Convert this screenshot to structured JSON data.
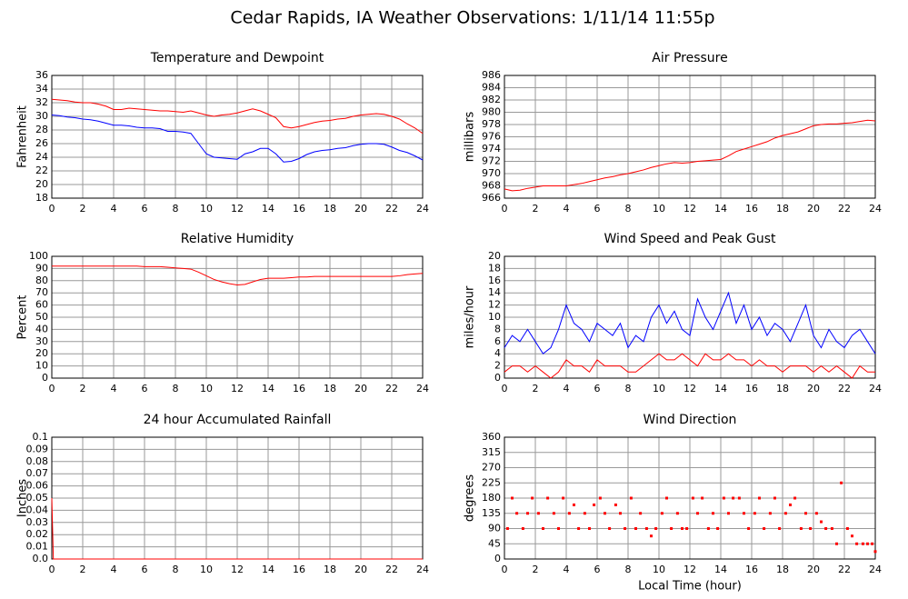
{
  "title": "Cedar Rapids, IA Weather Observations: 1/11/14 11:55p",
  "chart_data": [
    {
      "type": "line",
      "title": "Temperature and Dewpoint",
      "ylabel": "Fahrenheit",
      "x": [
        0,
        0.5,
        1,
        1.5,
        2,
        2.5,
        3,
        3.5,
        4,
        4.5,
        5,
        5.5,
        6,
        6.5,
        7,
        7.5,
        8,
        8.5,
        9,
        9.5,
        10,
        10.5,
        11,
        11.5,
        12,
        12.5,
        13,
        13.5,
        14,
        14.5,
        15,
        15.5,
        16,
        16.5,
        17,
        17.5,
        18,
        18.5,
        19,
        19.5,
        20,
        20.5,
        21,
        21.5,
        22,
        22.5,
        23,
        23.5,
        24
      ],
      "series": [
        {
          "color": "#ff0000",
          "values": [
            32.5,
            32.4,
            32.3,
            32.1,
            32.0,
            32.0,
            31.8,
            31.5,
            31.0,
            31.0,
            31.2,
            31.1,
            31.0,
            30.9,
            30.8,
            30.8,
            30.7,
            30.6,
            30.8,
            30.5,
            30.2,
            30.0,
            30.2,
            30.3,
            30.5,
            30.8,
            31.1,
            30.8,
            30.3,
            29.8,
            28.5,
            28.3,
            28.5,
            28.8,
            29.1,
            29.3,
            29.4,
            29.6,
            29.7,
            30.0,
            30.2,
            30.3,
            30.4,
            30.3,
            30.0,
            29.6,
            28.9,
            28.3,
            27.5
          ]
        },
        {
          "color": "#0000ff",
          "values": [
            30.2,
            30.1,
            29.9,
            29.8,
            29.6,
            29.5,
            29.3,
            29.0,
            28.7,
            28.7,
            28.6,
            28.4,
            28.3,
            28.3,
            28.2,
            27.8,
            27.8,
            27.7,
            27.5,
            26.0,
            24.5,
            24.0,
            23.9,
            23.8,
            23.7,
            24.5,
            24.8,
            25.3,
            25.3,
            24.5,
            23.3,
            23.4,
            23.8,
            24.4,
            24.8,
            25.0,
            25.1,
            25.3,
            25.4,
            25.7,
            25.9,
            26.0,
            26.0,
            25.9,
            25.5,
            25.0,
            24.7,
            24.2,
            23.6
          ]
        }
      ],
      "xlim": [
        0,
        24
      ],
      "xticks": [
        0,
        2,
        4,
        6,
        8,
        10,
        12,
        14,
        16,
        18,
        20,
        22,
        24
      ],
      "ylim": [
        18,
        36
      ],
      "yticks": [
        18,
        20,
        22,
        24,
        26,
        28,
        30,
        32,
        34,
        36
      ],
      "grid": true
    },
    {
      "type": "line",
      "title": "Air Pressure",
      "ylabel": "millibars",
      "x": [
        0,
        0.5,
        1,
        1.5,
        2,
        2.5,
        3,
        3.5,
        4,
        4.5,
        5,
        5.5,
        6,
        6.5,
        7,
        7.5,
        8,
        8.5,
        9,
        9.5,
        10,
        10.5,
        11,
        11.5,
        12,
        12.5,
        13,
        13.5,
        14,
        14.5,
        15,
        15.5,
        16,
        16.5,
        17,
        17.5,
        18,
        18.5,
        19,
        19.5,
        20,
        20.5,
        21,
        21.5,
        22,
        22.5,
        23,
        23.5,
        24
      ],
      "series": [
        {
          "color": "#ff0000",
          "values": [
            967.5,
            967.2,
            967.3,
            967.6,
            967.8,
            968.0,
            968.0,
            968.0,
            968.0,
            968.2,
            968.4,
            968.7,
            969.0,
            969.3,
            969.5,
            969.8,
            970.0,
            970.3,
            970.6,
            971.0,
            971.3,
            971.6,
            971.8,
            971.7,
            971.8,
            972.0,
            972.1,
            972.2,
            972.3,
            972.9,
            973.6,
            974.0,
            974.4,
            974.8,
            975.2,
            975.8,
            976.2,
            976.5,
            976.8,
            977.3,
            977.8,
            978.0,
            978.1,
            978.1,
            978.2,
            978.3,
            978.5,
            978.7,
            978.6
          ]
        }
      ],
      "xlim": [
        0,
        24
      ],
      "xticks": [
        0,
        2,
        4,
        6,
        8,
        10,
        12,
        14,
        16,
        18,
        20,
        22,
        24
      ],
      "ylim": [
        966,
        986
      ],
      "yticks": [
        966,
        968,
        970,
        972,
        974,
        976,
        978,
        980,
        982,
        984,
        986
      ],
      "grid": true
    },
    {
      "type": "line",
      "title": "Relative Humidity",
      "ylabel": "Percent",
      "x": [
        0,
        0.5,
        1,
        1.5,
        2,
        2.5,
        3,
        3.5,
        4,
        4.5,
        5,
        5.5,
        6,
        6.5,
        7,
        7.5,
        8,
        8.5,
        9,
        9.5,
        10,
        10.5,
        11,
        11.5,
        12,
        12.5,
        13,
        13.5,
        14,
        14.5,
        15,
        15.5,
        16,
        16.5,
        17,
        17.5,
        18,
        18.5,
        19,
        19.5,
        20,
        20.5,
        21,
        21.5,
        22,
        22.5,
        23,
        23.5,
        24
      ],
      "series": [
        {
          "color": "#ff0000",
          "values": [
            92,
            92,
            92,
            92,
            92,
            92,
            92,
            92,
            92,
            92,
            92,
            92,
            91.5,
            91.5,
            91.5,
            91,
            90.5,
            90,
            89.5,
            87,
            84,
            81,
            79,
            77.5,
            76.5,
            77,
            79,
            81,
            82,
            82,
            82,
            82.5,
            83,
            83,
            83.5,
            83.5,
            83.5,
            83.5,
            83.5,
            83.5,
            83.5,
            83.5,
            83.5,
            83.5,
            83.5,
            84,
            85,
            85.5,
            86
          ]
        }
      ],
      "xlim": [
        0,
        24
      ],
      "xticks": [
        0,
        2,
        4,
        6,
        8,
        10,
        12,
        14,
        16,
        18,
        20,
        22,
        24
      ],
      "ylim": [
        0,
        100
      ],
      "yticks": [
        0,
        10,
        20,
        30,
        40,
        50,
        60,
        70,
        80,
        90,
        100
      ],
      "grid": true
    },
    {
      "type": "line",
      "title": "Wind Speed and Peak Gust",
      "ylabel": "miles/hour",
      "x": [
        0,
        0.5,
        1,
        1.5,
        2,
        2.5,
        3,
        3.5,
        4,
        4.5,
        5,
        5.5,
        6,
        6.5,
        7,
        7.5,
        8,
        8.5,
        9,
        9.5,
        10,
        10.5,
        11,
        11.5,
        12,
        12.5,
        13,
        13.5,
        14,
        14.5,
        15,
        15.5,
        16,
        16.5,
        17,
        17.5,
        18,
        18.5,
        19,
        19.5,
        20,
        20.5,
        21,
        21.5,
        22,
        22.5,
        23,
        23.5,
        24
      ],
      "series": [
        {
          "color": "#0000ff",
          "values": [
            5,
            7,
            6,
            8,
            6,
            4,
            5,
            8,
            12,
            9,
            8,
            6,
            9,
            8,
            7,
            9,
            5,
            7,
            6,
            10,
            12,
            9,
            11,
            8,
            7,
            13,
            10,
            8,
            11,
            14,
            9,
            12,
            8,
            10,
            7,
            9,
            8,
            6,
            9,
            12,
            7,
            5,
            8,
            6,
            5,
            7,
            8,
            6,
            4
          ]
        },
        {
          "color": "#ff0000",
          "values": [
            1,
            2,
            2,
            1,
            2,
            1,
            0,
            1,
            3,
            2,
            2,
            1,
            3,
            2,
            2,
            2,
            1,
            1,
            2,
            3,
            4,
            3,
            3,
            4,
            3,
            2,
            4,
            3,
            3,
            4,
            3,
            3,
            2,
            3,
            2,
            2,
            1,
            2,
            2,
            2,
            1,
            2,
            1,
            2,
            1,
            0,
            2,
            1,
            1
          ]
        }
      ],
      "xlim": [
        0,
        24
      ],
      "xticks": [
        0,
        2,
        4,
        6,
        8,
        10,
        12,
        14,
        16,
        18,
        20,
        22,
        24
      ],
      "ylim": [
        0,
        20
      ],
      "yticks": [
        0,
        2,
        4,
        6,
        8,
        10,
        12,
        14,
        16,
        18,
        20
      ],
      "grid": true
    },
    {
      "type": "line",
      "title": "24 hour Accumulated Rainfall",
      "ylabel": "Inches",
      "x": [
        0,
        0.1,
        24
      ],
      "series": [
        {
          "color": "#ff0000",
          "values": [
            0.05,
            0,
            0
          ]
        }
      ],
      "xlim": [
        0,
        24
      ],
      "xticks": [
        0,
        2,
        4,
        6,
        8,
        10,
        12,
        14,
        16,
        18,
        20,
        22,
        24
      ],
      "ylim": [
        0,
        0.1
      ],
      "yticks": [
        {
          "value": 0,
          "label": "0.0"
        },
        0.01,
        0.02,
        0.03,
        0.04,
        0.05,
        0.06,
        0.07,
        0.08,
        0.09,
        0.1
      ],
      "grid": true
    },
    {
      "type": "scatter",
      "title": "Wind Direction",
      "ylabel": "degrees",
      "xlabel": "Local Time (hour)",
      "color": "#ff0000",
      "x": [
        0.2,
        0.5,
        0.8,
        1.2,
        1.5,
        1.8,
        2.2,
        2.5,
        2.8,
        3.2,
        3.5,
        3.8,
        4.2,
        4.5,
        4.8,
        5.2,
        5.5,
        5.8,
        6.2,
        6.5,
        6.8,
        7.2,
        7.5,
        7.8,
        8.2,
        8.5,
        8.8,
        9.2,
        9.5,
        9.8,
        10.2,
        10.5,
        10.8,
        11.2,
        11.5,
        11.8,
        12.2,
        12.5,
        12.8,
        13.2,
        13.5,
        13.8,
        14.2,
        14.5,
        14.8,
        15.2,
        15.5,
        15.8,
        16.2,
        16.5,
        16.8,
        17.2,
        17.5,
        17.8,
        18.2,
        18.5,
        18.8,
        19.2,
        19.5,
        19.8,
        20.2,
        20.5,
        20.8,
        21.2,
        21.5,
        21.8,
        22.2,
        22.5,
        22.8,
        23.2,
        23.5,
        23.8,
        24
      ],
      "values": [
        90,
        180,
        135,
        90,
        135,
        180,
        135,
        90,
        180,
        135,
        90,
        180,
        135,
        160,
        90,
        135,
        90,
        160,
        180,
        135,
        90,
        160,
        135,
        90,
        180,
        90,
        135,
        90,
        68,
        90,
        135,
        180,
        90,
        135,
        90,
        90,
        180,
        135,
        180,
        90,
        135,
        90,
        180,
        135,
        180,
        180,
        135,
        90,
        135,
        180,
        90,
        135,
        180,
        90,
        135,
        160,
        180,
        90,
        135,
        90,
        135,
        110,
        90,
        90,
        45,
        225,
        90,
        68,
        45,
        45,
        45,
        45,
        22
      ],
      "xlim": [
        0,
        24
      ],
      "xticks": [
        0,
        2,
        4,
        6,
        8,
        10,
        12,
        14,
        16,
        18,
        20,
        22,
        24
      ],
      "ylim": [
        0,
        360
      ],
      "yticks": [
        0,
        45,
        90,
        135,
        180,
        225,
        270,
        315,
        360
      ],
      "grid": true
    }
  ]
}
